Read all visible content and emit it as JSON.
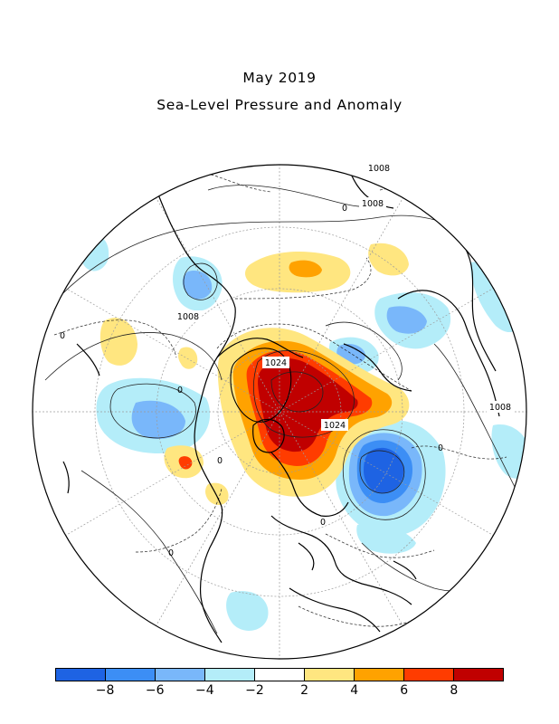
{
  "title": "May 2019",
  "subtitle": "Sea-Level Pressure and Anomaly",
  "colorbar": {
    "colors": [
      "#1e63e3",
      "#3c8ef5",
      "#79b7fa",
      "#b4edf9",
      "#ffffff",
      "#ffe680",
      "#ffa200",
      "#ff3c00",
      "#c00000"
    ],
    "tick_labels": [
      "-8",
      "-6",
      "-4",
      "-2",
      "2",
      "4",
      "6",
      "8"
    ]
  },
  "contour_labels": {
    "high_1": "1024",
    "high_2": "1024",
    "isobar_1": "1008",
    "isobar_2": "1008",
    "isobar_3": "1008",
    "isobar_4": "1008",
    "zero_1": "0",
    "zero_2": "0",
    "zero_3": "0",
    "zero_4": "0",
    "zero_5": "0",
    "zero_6": "0",
    "zero_7": "0"
  }
}
